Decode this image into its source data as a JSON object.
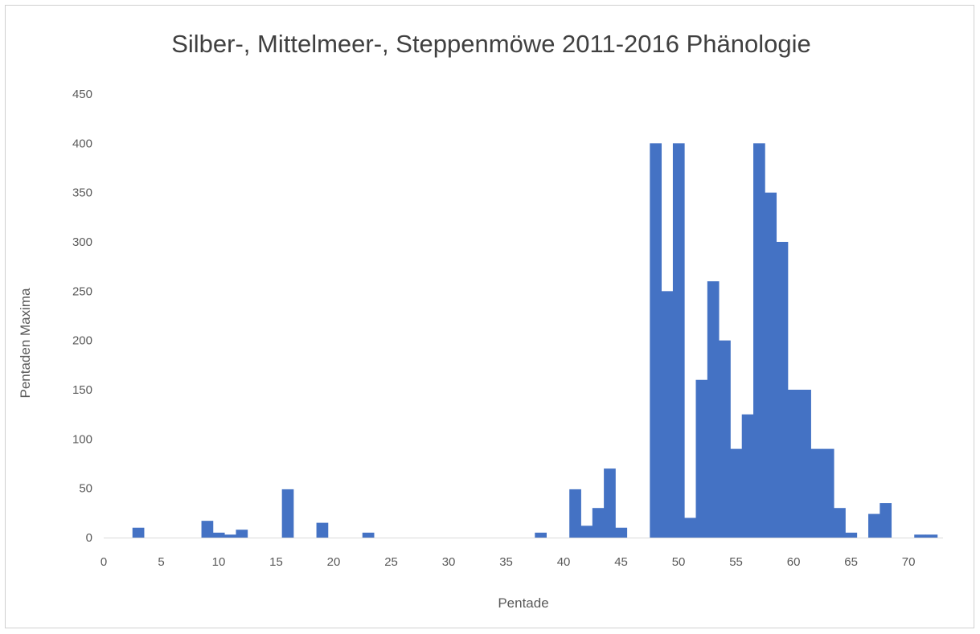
{
  "chart_data": {
    "type": "bar",
    "title": "Silber-, Mittelmeer-, Steppenmöwe 2011-2016 Phänologie",
    "xlabel": "Pentade",
    "ylabel": "Pentaden Maxima",
    "xlim": [
      0,
      73
    ],
    "ylim": [
      0,
      450
    ],
    "x_ticks": [
      0,
      5,
      10,
      15,
      20,
      25,
      30,
      35,
      40,
      45,
      50,
      55,
      60,
      65,
      70
    ],
    "y_ticks": [
      0,
      50,
      100,
      150,
      200,
      250,
      300,
      350,
      400,
      450
    ],
    "grid": false,
    "legend": "none",
    "bar_color": "#4472c4",
    "x": [
      1,
      2,
      3,
      4,
      5,
      6,
      7,
      8,
      9,
      10,
      11,
      12,
      13,
      14,
      15,
      16,
      17,
      18,
      19,
      20,
      21,
      22,
      23,
      24,
      25,
      26,
      27,
      28,
      29,
      30,
      31,
      32,
      33,
      34,
      35,
      36,
      37,
      38,
      39,
      40,
      41,
      42,
      43,
      44,
      45,
      46,
      47,
      48,
      49,
      50,
      51,
      52,
      53,
      54,
      55,
      56,
      57,
      58,
      59,
      60,
      61,
      62,
      63,
      64,
      65,
      66,
      67,
      68,
      69,
      70,
      71,
      72
    ],
    "values": [
      0,
      0,
      10,
      0,
      0,
      0,
      0,
      0,
      17,
      5,
      3,
      8,
      0,
      0,
      0,
      49,
      0,
      0,
      15,
      0,
      0,
      0,
      5,
      0,
      0,
      0,
      0,
      0,
      0,
      0,
      0,
      0,
      0,
      0,
      0,
      0,
      0,
      5,
      0,
      0,
      49,
      12,
      30,
      70,
      10,
      0,
      0,
      400,
      250,
      400,
      20,
      160,
      260,
      200,
      90,
      125,
      400,
      350,
      300,
      150,
      150,
      90,
      90,
      30,
      5,
      0,
      24,
      35,
      0,
      0,
      3,
      3
    ]
  }
}
